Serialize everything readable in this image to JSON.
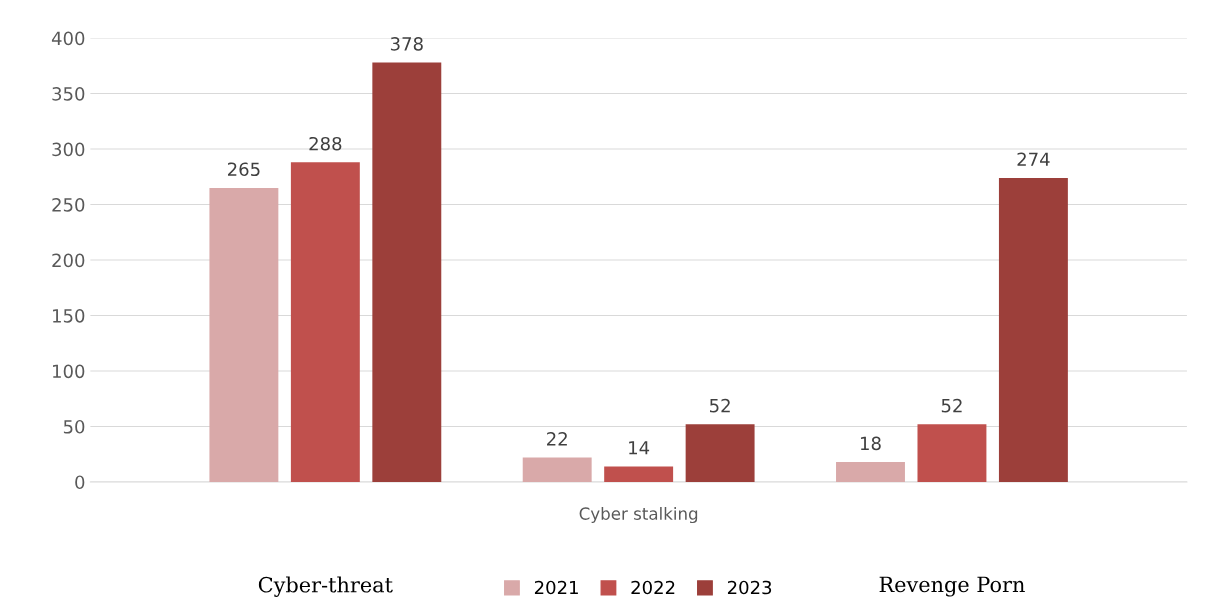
{
  "chart_data": {
    "type": "bar",
    "categories": [
      "Cyber-threat",
      "Cyber stalking",
      "Revenge Porn"
    ],
    "series": [
      {
        "name": "2021",
        "color": "#d9a9a9",
        "values": [
          265,
          22,
          18
        ]
      },
      {
        "name": "2022",
        "color": "#c0504d",
        "values": [
          288,
          14,
          52
        ]
      },
      {
        "name": "2023",
        "color": "#9c3f3a",
        "values": [
          378,
          52,
          274
        ]
      }
    ],
    "ylim": [
      0,
      400
    ],
    "yticks": [
      0,
      50,
      100,
      150,
      200,
      250,
      300,
      350,
      400
    ],
    "grid": "y",
    "legend": "bottom",
    "data_labels": true
  }
}
